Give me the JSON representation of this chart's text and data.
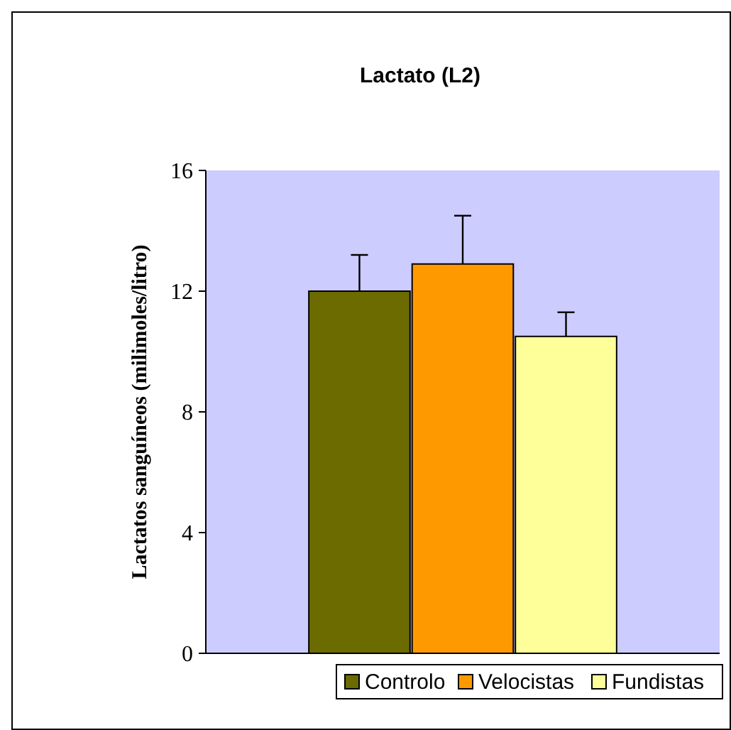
{
  "chart_data": {
    "type": "bar",
    "title": "Lactato (L2)",
    "ylabel": "Lactatos sanguíneos (milimoles/litro)",
    "categories": [
      null
    ],
    "series": [
      {
        "name": "Controlo",
        "color": "#6b6b00",
        "values": [
          12.0
        ],
        "errors": [
          [
            12.0,
            13.2
          ]
        ]
      },
      {
        "name": "Velocistas",
        "color": "#ff9900",
        "values": [
          12.9
        ],
        "errors": [
          [
            12.9,
            14.5
          ]
        ]
      },
      {
        "name": "Fundistas",
        "color": "#ffff99",
        "values": [
          10.5
        ],
        "errors": [
          [
            10.5,
            11.3
          ]
        ]
      }
    ],
    "ylim": [
      0,
      16
    ],
    "yticks": [
      0,
      4,
      8,
      12,
      16
    ],
    "grid": false,
    "legend": "bottom",
    "tick_labels": "y"
  }
}
